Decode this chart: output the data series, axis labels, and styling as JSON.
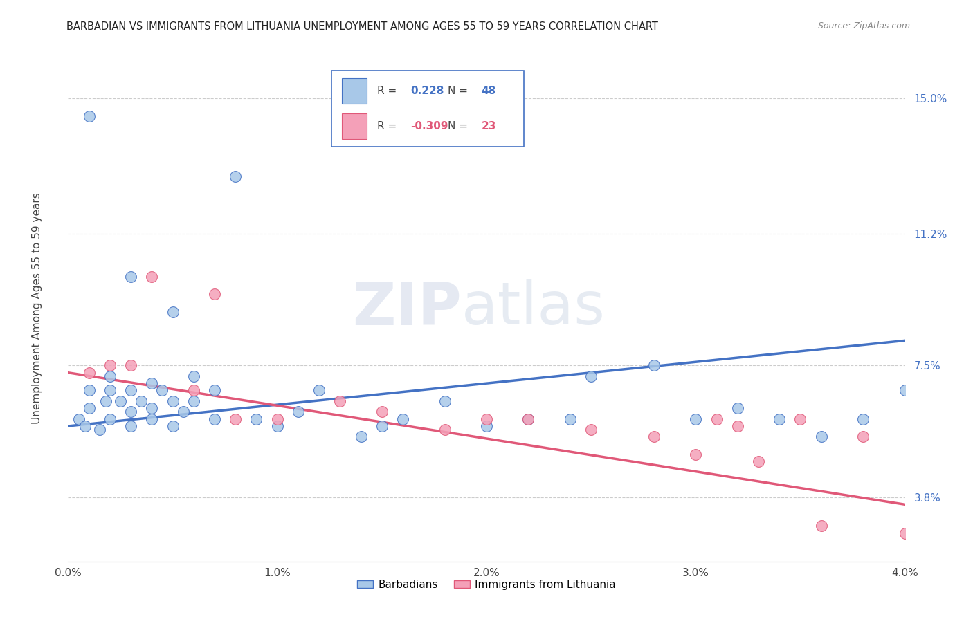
{
  "title": "BARBADIAN VS IMMIGRANTS FROM LITHUANIA UNEMPLOYMENT AMONG AGES 55 TO 59 YEARS CORRELATION CHART",
  "source": "Source: ZipAtlas.com",
  "ylabel": "Unemployment Among Ages 55 to 59 years",
  "legend_label1": "Barbadians",
  "legend_label2": "Immigrants from Lithuania",
  "R1": 0.228,
  "N1": 48,
  "R2": -0.309,
  "N2": 23,
  "color1": "#a8c8e8",
  "color2": "#f4a0b8",
  "line_color1": "#4472c4",
  "line_color2": "#e05878",
  "ytick_labels": [
    "3.8%",
    "7.5%",
    "11.2%",
    "15.0%"
  ],
  "ytick_values": [
    0.038,
    0.075,
    0.112,
    0.15
  ],
  "xtick_bottom_labels": [
    "0.0%",
    "1.0%",
    "2.0%",
    "3.0%",
    "4.0%"
  ],
  "xtick_bottom_values": [
    0.0,
    0.01,
    0.02,
    0.03,
    0.04
  ],
  "x_range": [
    0.0,
    0.04
  ],
  "y_range": [
    0.02,
    0.162
  ],
  "watermark_zip": "ZIP",
  "watermark_atlas": "atlas",
  "background_color": "#ffffff",
  "grid_color": "#cccccc",
  "scatter1_x": [
    0.0005,
    0.0008,
    0.001,
    0.001,
    0.0015,
    0.0018,
    0.002,
    0.002,
    0.002,
    0.0025,
    0.003,
    0.003,
    0.003,
    0.0035,
    0.004,
    0.004,
    0.004,
    0.0045,
    0.005,
    0.005,
    0.0055,
    0.006,
    0.006,
    0.007,
    0.007,
    0.008,
    0.009,
    0.01,
    0.011,
    0.012,
    0.014,
    0.015,
    0.016,
    0.018,
    0.02,
    0.022,
    0.024,
    0.025,
    0.028,
    0.03,
    0.032,
    0.034,
    0.036,
    0.038,
    0.04,
    0.001,
    0.003,
    0.005
  ],
  "scatter1_y": [
    0.06,
    0.058,
    0.063,
    0.068,
    0.057,
    0.065,
    0.06,
    0.068,
    0.072,
    0.065,
    0.058,
    0.062,
    0.068,
    0.065,
    0.06,
    0.063,
    0.07,
    0.068,
    0.058,
    0.065,
    0.062,
    0.065,
    0.072,
    0.06,
    0.068,
    0.128,
    0.06,
    0.058,
    0.062,
    0.068,
    0.055,
    0.058,
    0.06,
    0.065,
    0.058,
    0.06,
    0.06,
    0.072,
    0.075,
    0.06,
    0.063,
    0.06,
    0.055,
    0.06,
    0.068,
    0.145,
    0.1,
    0.09
  ],
  "scatter2_x": [
    0.001,
    0.002,
    0.003,
    0.004,
    0.006,
    0.007,
    0.008,
    0.01,
    0.013,
    0.015,
    0.018,
    0.02,
    0.022,
    0.025,
    0.028,
    0.03,
    0.031,
    0.032,
    0.033,
    0.035,
    0.036,
    0.038,
    0.04
  ],
  "scatter2_y": [
    0.073,
    0.075,
    0.075,
    0.1,
    0.068,
    0.095,
    0.06,
    0.06,
    0.065,
    0.062,
    0.057,
    0.06,
    0.06,
    0.057,
    0.055,
    0.05,
    0.06,
    0.058,
    0.048,
    0.06,
    0.03,
    0.055,
    0.028
  ],
  "line1_x0": 0.0,
  "line1_y0": 0.058,
  "line1_x1": 0.04,
  "line1_y1": 0.082,
  "line2_x0": 0.0,
  "line2_y0": 0.073,
  "line2_x1": 0.04,
  "line2_y1": 0.036
}
